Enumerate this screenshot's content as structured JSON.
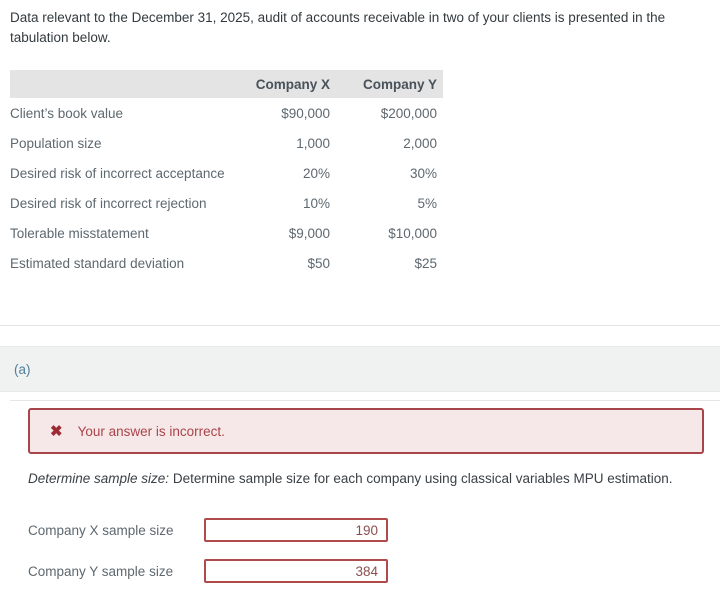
{
  "intro": "Data relevant to the December 31, 2025, audit of accounts receivable in two of your clients is presented in the tabulation below.",
  "table": {
    "headers": {
      "company_x": "Company X",
      "company_y": "Company Y"
    },
    "rows": [
      {
        "label": "Client’s book value",
        "x": "$90,000",
        "y": "$200,000"
      },
      {
        "label": "Population size",
        "x": "1,000",
        "y": "2,000"
      },
      {
        "label": "Desired risk of incorrect acceptance",
        "x": "20%",
        "y": "30%"
      },
      {
        "label": "Desired risk of incorrect rejection",
        "x": "10%",
        "y": "5%"
      },
      {
        "label": "Tolerable misstatement",
        "x": "$9,000",
        "y": "$10,000"
      },
      {
        "label": "Estimated standard deviation",
        "x": "$50",
        "y": "$25"
      }
    ]
  },
  "section": {
    "label": "(a)"
  },
  "feedback": {
    "icon": "✖",
    "message": "Your answer is incorrect."
  },
  "prompt": {
    "lead": "Determine sample size:",
    "text": " Determine sample size for each company using classical variables MPU estimation."
  },
  "answers": [
    {
      "label": "Company X sample size",
      "value": "190"
    },
    {
      "label": "Company Y sample size",
      "value": "384"
    }
  ],
  "colors": {
    "table_header_bg": "#e4e4e4",
    "section_band_bg": "#f0f1f1",
    "section_label": "#4e7f9c",
    "alert_border": "#a8454b",
    "alert_bg": "#f6e8e8",
    "alert_text": "#a94449",
    "input_border": "#b04b4b",
    "input_text": "#8a5050"
  }
}
